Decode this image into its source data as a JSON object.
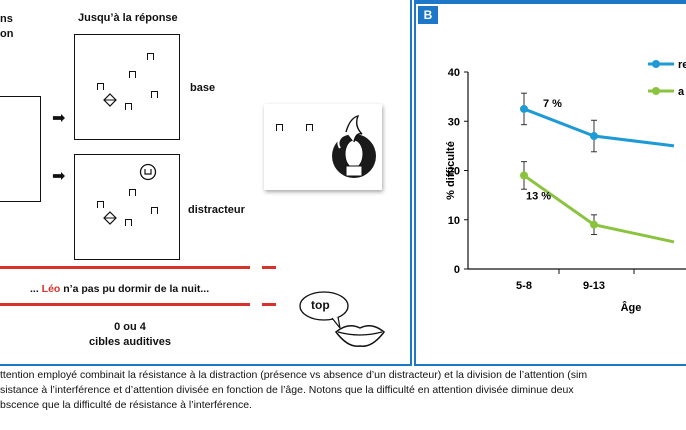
{
  "panel_a": {
    "header_left_line1": "ns",
    "header_left_line2": "on",
    "header_mid": "Jusqu’à la réponse",
    "label_base": "base",
    "label_distracteur": "distracteur",
    "sentence_prefix": "... ",
    "sentence_name": "Léo",
    "sentence_rest": " n’a pas pu dormir de la nuit...",
    "targets_line1": "0 ou 4",
    "targets_line2": "cibles auditives",
    "speech_bubble": "top",
    "arrow_glyph": "➡"
  },
  "panel_b": {
    "letter": "B"
  },
  "chart_data": {
    "type": "line",
    "categories": [
      "5-8",
      "9-13",
      ""
    ],
    "xlabel": "Âge",
    "ylabel": "% difficulté",
    "ylim": [
      0,
      40
    ],
    "yticks": [
      0,
      10,
      20,
      30,
      40
    ],
    "series": [
      {
        "name": "re",
        "color": "#1e9ad6",
        "values": [
          32.5,
          27,
          25
        ],
        "errors": [
          3.2,
          3.2,
          null
        ]
      },
      {
        "name": "a",
        "color": "#8ac43f",
        "values": [
          19,
          9,
          5.5
        ],
        "errors": [
          2.8,
          2.0,
          null
        ]
      }
    ],
    "annotations": [
      {
        "text": "7 %",
        "series": 0,
        "index": 0
      },
      {
        "text": "13 %",
        "series": 1,
        "index": 0
      }
    ]
  },
  "caption": {
    "line1": "ttention employé combinait la résistance à la distraction (présence vs absence d’un distracteur) et la division de l’attention (sim",
    "line2": "sistance à l’interférence et d’attention divisée en fonction de l’âge. Notons que la difficulté en attention divisée diminue deux",
    "line3": "bscence que la difficulté de résistance à l’interférence."
  }
}
